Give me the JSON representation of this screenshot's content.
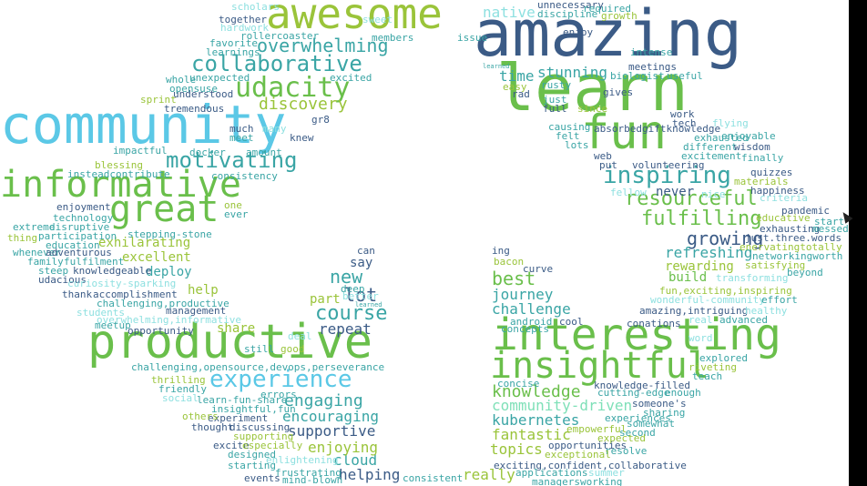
{
  "colors": {
    "navy": "#3b5b86",
    "green": "#6abf4b",
    "cyan": "#5bc8e6",
    "teal": "#3aa5a5",
    "olive": "#9ac43a",
    "light_cyan": "#8ee0e0",
    "mint": "#7fe0b8",
    "slate": "#4a5a7a"
  },
  "words": {
    "w_amazing": "amazing",
    "w_awesome": "awesome",
    "w_learn": "learn",
    "w_community": "community",
    "w_fun": "fun",
    "w_productive": "productive",
    "w_interesting": "interesting",
    "w_insightful": "insightful",
    "w_informative": "informative",
    "w_great": "great",
    "w_udacity": "udacity",
    "w_collaborative": "collaborative",
    "w_overwhelming": "overwhelming",
    "w_motivating": "motivating",
    "w_discovery": "discovery",
    "w_inspiring": "inspiring",
    "w_resourceful": "resourceful",
    "w_fulfilling": "fulfilling",
    "w_growing": "growing",
    "w_refreshing": "refreshing",
    "w_rewarding": "rewarding",
    "w_build": "build",
    "w_new": "new",
    "w_lot": "lot",
    "w_course": "course",
    "w_experience": "experience",
    "w_engaging": "engaging",
    "w_best": "best",
    "w_journey": "journey",
    "w_challenge": "challenge",
    "w_knowledge": "knowledge",
    "w_kubernetes": "kubernetes",
    "w_fantastic": "fantastic",
    "w_topics": "topics",
    "w_really": "really",
    "w_helping": "helping",
    "w_cloud": "cloud",
    "w_enjoying": "enjoying",
    "w_supportive": "supportive",
    "w_encouraging": "encouraging",
    "w_repeat": "repeat",
    "w_share": "share",
    "w_part": "part",
    "w_say": "say",
    "w_exhilarating": "exhilarating",
    "w_excellent": "excellent",
    "w_deploy": "deploy",
    "w_help": "help",
    "w_native": "native",
    "w_stunning": "stunning",
    "w_time": "time",
    "w_never": "never",
    "w_community_driven": "community-driven",
    "w_scholars": "scholars",
    "w_sweet": "sweet",
    "w_unnecessary": "unnecessary",
    "w_required": "required",
    "w_discipline": "discipline",
    "w_growth": "growth",
    "w_together": "together",
    "w_hardwork": "hardwork",
    "w_rollercoaster": "rollercoaster",
    "w_members": "members",
    "w_issue": "issue",
    "w_enjoy": "enjoy",
    "w_favorite": "favorite",
    "w_learnings": "learnings",
    "w_intense": "intense",
    "w_meetings": "meetings",
    "w_biologist": "biologist",
    "w_useful": "useful",
    "w_learned": "learned",
    "w_whole": "whole",
    "w_unexpected": "unexpected",
    "w_excited": "excited",
    "w_opensuse": "opensuse",
    "w_easy": "easy",
    "w_rusty": "rusty",
    "w_rad": "rad",
    "w_gives": "gives",
    "w_understood": "understood",
    "w_sprint": "sprint",
    "w_tremendous": "tremendous",
    "w_just": "just",
    "w_full": "full",
    "w_since": "since",
    "w_gr8": "gr8",
    "w_work": "work",
    "w_tech": "tech",
    "w_flying": "flying",
    "w_much": "much",
    "w_many": "many",
    "w_meet": "meet",
    "w_knew": "knew",
    "w_causing": "causing",
    "w_absorbed": "absorbedgiftknowledge",
    "w_enjoyable": "enjoyable",
    "w_felt": "felt",
    "w_exhausted": "exhausted",
    "w_lots": "lots",
    "w_different": "different",
    "w_wisdom": "wisdom",
    "w_impactful": "impactful",
    "w_docker": "docker",
    "w_amount": "amount",
    "w_web": "web",
    "w_excitement": "excitement",
    "w_finally": "finally",
    "w_blessing": "blessing",
    "w_put": "put",
    "w_volunteering": "volunteering",
    "w_instead": "insteadcontribute",
    "w_consistency": "consistency",
    "w_quizzes": "quizzes",
    "w_materials": "materials",
    "w_happiness": "happiness",
    "w_fellow": "fellow",
    "w_nice": "nice",
    "w_criteria": "criteria",
    "w_enjoyment": "enjoyment",
    "w_one": "one",
    "w_ever": "ever",
    "w_pandemic": "pandemic",
    "w_technology": "technology",
    "w_educative": "educative",
    "w_start": "start",
    "w_extreme": "extreme",
    "w_disruptive": "disruptive",
    "w_exhausting": "exhausting",
    "w_messed": "messed",
    "w_thing": "thing",
    "w_participation": "participation",
    "w_stepping_stone": "stepping-stone",
    "w_just_three": "just.three.words",
    "w_education": "education",
    "w_enervating": "enervatingtotally",
    "w_whenever": "whenever",
    "w_adventurous": "adventurous",
    "w_family": "family",
    "w_fulfilment": "fulfilment",
    "w_networking": "networkingworth",
    "w_satisfying": "satisfying",
    "w_steep": "steep",
    "w_knowledgeable": "knowledgeable",
    "w_beyond": "beyond",
    "w_udacious": "udacious",
    "w_curiosity": "curiosity-sparking",
    "w_transforming": "transforming",
    "w_thank": "thank",
    "w_accomplishment": "accomplishment",
    "w_fun_exciting": "fun,exciting,inspiring",
    "w_challenging_productive": "challenging,productive",
    "w_wonderful": "wonderful-community",
    "w_effort": "effort",
    "w_students": "students",
    "w_management": "management",
    "w_overwhelming_informative": "overwhelming,informative",
    "w_amazing_intriguing": "amazing,intriguing",
    "w_healthy": "healthy",
    "w_meetup": "meetup",
    "w_opportunity": "opportunity",
    "w_real": "real",
    "w_advanced": "advanced",
    "w_conations": "conations",
    "w_word": "word",
    "w_challenging_opensource": "challenging,opensource,devops,perseverance",
    "w_explored": "explored",
    "w_riveting": "riveting",
    "w_teach": "teach",
    "w_thrilling": "thrilling",
    "w_friendly": "friendly",
    "w_social": "social",
    "w_learn_fun_share": "learn-fun-share",
    "w_errors": "errors",
    "w_insightful_fun": "insightful,fun",
    "w_experiment": "experiment",
    "w_others": "others",
    "w_thought": "thought",
    "w_discussing": "discussing",
    "w_supporting": "supporting",
    "w_excite": "excite",
    "w_especially": "especially",
    "w_designed": "designed",
    "w_enlightening": "enlightening",
    "w_starting": "starting",
    "w_frustrating": "frustrating",
    "w_events": "events",
    "w_mind_blown": "mind-blown",
    "w_consistent": "consistent",
    "w_concise": "concise",
    "w_cutting_edge": "cutting-edge",
    "w_knowledge_filled": "knowledge-filled",
    "w_enough": "enough",
    "w_someones": "someone's",
    "w_sharing": "sharing",
    "w_somewhat": "somewhat",
    "w_experiences": "experiences",
    "w_second": "second",
    "w_empowerful": "empowerful",
    "w_expected": "expected",
    "w_opportunities": "opportunities",
    "w_resolve": "resolve",
    "w_exceptional": "exceptional",
    "w_exciting_confident": "exciting,confident,collaborative",
    "w_applications": "applications",
    "w_summer": "summer",
    "w_managers": "managersworking",
    "w_ing": "ing",
    "w_bacon": "bacon",
    "w_curve": "curve",
    "w_android": "android",
    "w_cool": "cool",
    "w_concepts": "concepts",
    "w_can": "can",
    "w_better": "better",
    "w_deep": "deep",
    "w_still": "still",
    "w_deal": "deal",
    "w_good": "good",
    "w_learned2": "learned"
  }
}
